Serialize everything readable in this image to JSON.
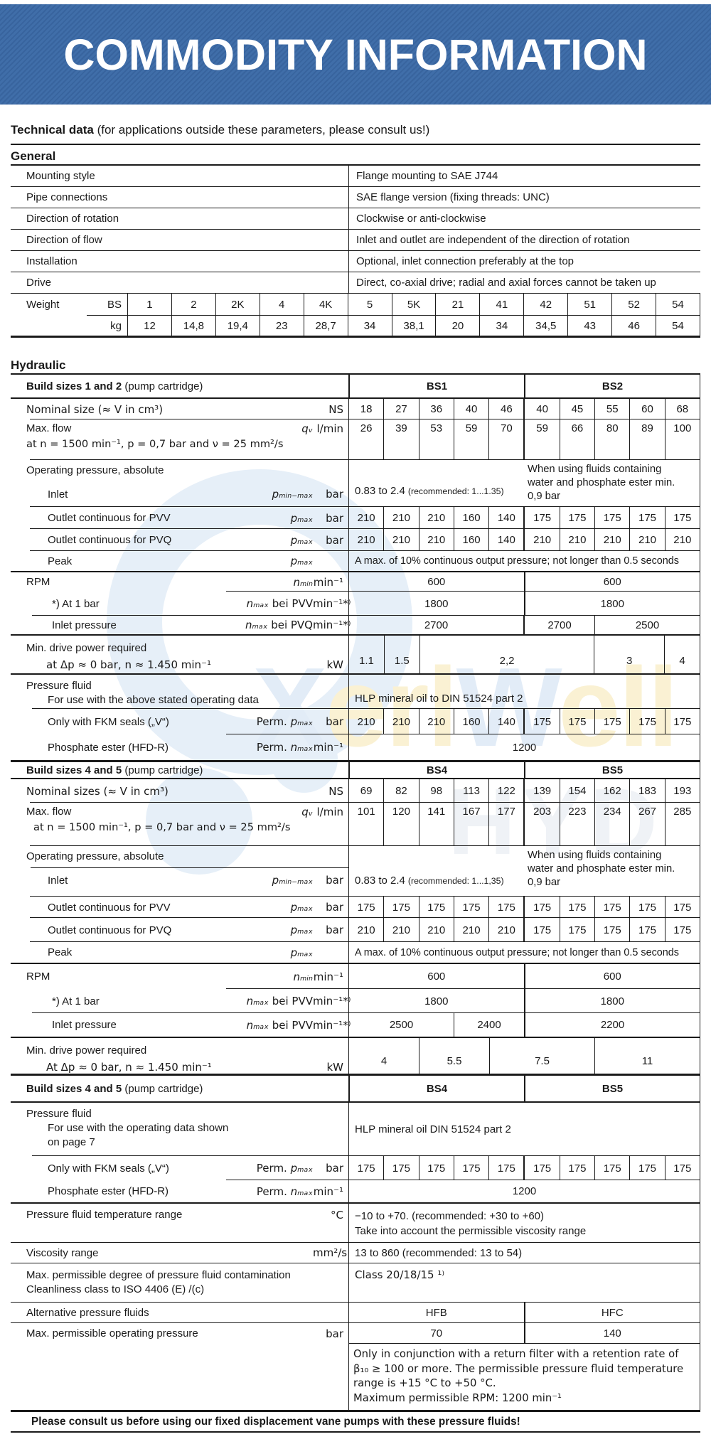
{
  "banner": {
    "title": "COMMODITY INFORMATION"
  },
  "tech_heading": {
    "bold": "Technical data",
    "rest": " (for applications outside these parameters, please consult us!)"
  },
  "general": {
    "heading": "General",
    "rows": [
      {
        "label": "Mounting style",
        "value": "Flange mounting to SAE J744"
      },
      {
        "label": "Pipe connections",
        "value": "SAE flange version (fixing threads: UNC)"
      },
      {
        "label": "Direction of rotation",
        "value": "Clockwise or anti-clockwise"
      },
      {
        "label": "Direction of flow",
        "value": "Inlet and outlet are independent of the direction of rotation"
      },
      {
        "label": "Installation",
        "value": "Optional, inlet connection preferably at the top"
      },
      {
        "label": "Drive",
        "value": "Direct, co-axial drive; radial and axial forces cannot be taken up"
      }
    ],
    "weight": {
      "label": "Weight",
      "row1_unit": "BS",
      "row2_unit": "kg",
      "sizes": [
        "1",
        "2",
        "2K",
        "4",
        "4K",
        "5",
        "5K",
        "21",
        "41",
        "42",
        "51",
        "52",
        "54"
      ],
      "kg": [
        "12",
        "14,8",
        "19,4",
        "23",
        "28,7",
        "34",
        "38,1",
        "20",
        "34",
        "34,5",
        "43",
        "46",
        "54"
      ]
    }
  },
  "hydraulic": {
    "heading": "Hydraulic"
  },
  "s1": {
    "header": {
      "bold": "Build sizes 1 and 2 ",
      "normal": "(pump cartridge)",
      "cells": [
        {
          "t": "BS1",
          "s": 1
        },
        {
          "t": "BS2",
          "s": 1,
          "c": "bsl"
        }
      ]
    },
    "nominal": {
      "label": "Nominal size (≈ V in cm³)",
      "unit": "NS",
      "values": [
        "18",
        "27",
        "36",
        "40",
        "46",
        "40",
        "45",
        "55",
        "60",
        "68"
      ]
    },
    "flow": {
      "label": "Max. flow",
      "sub": "at n = 1500 min⁻¹, p = 0,7 bar and ν = 25 mm²/s",
      "sym": "qᵥ",
      "unit": "l/min",
      "values": [
        "26",
        "39",
        "53",
        "59",
        "70",
        "59",
        "66",
        "80",
        "89",
        "100"
      ]
    },
    "op": {
      "label": "Operating pressure, absolute",
      "inlet_label": "Inlet",
      "sym": "pₘᵢₙ₋ₘₐₓ",
      "unit": "bar",
      "bs1_value": "0.83 to 2.4",
      "bs1_note": "(recommended: 1...1.35)",
      "bs2_value": "When using fluids containing\nwater and phosphate ester min.\n0,9 bar"
    },
    "pvv": {
      "label": "Outlet continuous for PVV",
      "sym": "pₘₐₓ",
      "unit": "bar",
      "values": [
        "210",
        "210",
        "210",
        "160",
        "140",
        "175",
        "175",
        "175",
        "175",
        "175"
      ]
    },
    "pvq": {
      "label": "Outlet continuous for PVQ",
      "sym": "pₘₐₓ",
      "unit": "bar",
      "values": [
        "210",
        "210",
        "210",
        "160",
        "140",
        "210",
        "210",
        "210",
        "210",
        "210"
      ]
    },
    "peak": {
      "label": "Peak",
      "sym": "pₘₐₓ",
      "value": "A max. of 10% continuous output pressure; not longer than 0.5 seconds"
    },
    "rpm": {
      "label": "RPM",
      "sym": "nₘᵢₙ",
      "unit": "min⁻¹",
      "cells": [
        {
          "t": "600",
          "s": 5
        },
        {
          "t": "600",
          "s": 5,
          "c": "bsl"
        }
      ]
    },
    "rpm2": {
      "label": "*) At 1 bar",
      "sym": "nₘₐₓ",
      "sym2": " bei PVV",
      "unit": "min⁻¹*⁾",
      "cells": [
        {
          "t": "1800",
          "s": 5
        },
        {
          "t": "1800",
          "s": 5,
          "c": "bsl"
        }
      ]
    },
    "rpm3": {
      "label": "Inlet pressure",
      "sym": "nₘₐₓ",
      "sym2": " bei PVQ",
      "unit": "min⁻¹*⁾",
      "cells": [
        {
          "t": "2700",
          "s": 5
        },
        {
          "t": "2700",
          "s": 2,
          "c": "bsl"
        },
        {
          "t": "2500",
          "s": 3
        }
      ]
    },
    "power": {
      "label": "Min. drive power required",
      "sub": "at Δp ≈ 0 bar, n ≈ 1.450 min⁻¹",
      "unit": "kW",
      "cells": [
        {
          "t": "1.1",
          "s": 1
        },
        {
          "t": "1.5",
          "s": 1
        },
        {
          "t": "2,2",
          "s": 5
        },
        {
          "t": "3",
          "s": 2
        },
        {
          "t": "4",
          "s": 1
        }
      ]
    },
    "fluid": {
      "label": "Pressure fluid",
      "sub": "For use with the above stated operating data",
      "value": "HLP mineral oil to DIN 51524 part 2"
    },
    "fkm": {
      "label": "Only with FKM seals („V“)",
      "sym_pre": "Perm. ",
      "sym": "pₘₐₓ",
      "unit": "bar",
      "values": [
        "210",
        "210",
        "210",
        "160",
        "140",
        "175",
        "175",
        "175",
        "175",
        "175"
      ]
    },
    "phos": {
      "label": "Phosphate ester  (HFD-R)",
      "sym_pre": "Perm. ",
      "sym": "nₘₐₓ",
      "unit": "min⁻¹",
      "cells": [
        {
          "t": "1200",
          "s": 1
        }
      ]
    }
  },
  "s2": {
    "header": {
      "bold": "Build sizes 4 and 5 ",
      "normal": "(pump cartridge)",
      "cells": [
        {
          "t": "BS4",
          "s": 1
        },
        {
          "t": "BS5",
          "s": 1,
          "c": "bsl"
        }
      ]
    },
    "nominal": {
      "label": "Nominal sizes (≈ V in cm³)",
      "unit": "NS",
      "values": [
        "69",
        "82",
        "98",
        "113",
        "122",
        "139",
        "154",
        "162",
        "183",
        "193"
      ]
    },
    "flow": {
      "label": "Max. flow",
      "sub": "at n = 1500 min⁻¹, p = 0,7 bar and ν = 25 mm²/s",
      "sym": "qᵥ",
      "unit": "l/min",
      "values": [
        "101",
        "120",
        "141",
        "167",
        "177",
        "203",
        "223",
        "234",
        "267",
        "285"
      ]
    },
    "op": {
      "label": "Operating pressure, absolute",
      "inlet_label": "Inlet",
      "sym": "pₘᵢₙ₋ₘₐₓ",
      "unit": "bar",
      "bs1_value": "0.83 to 2.4",
      "bs1_note": "(recommended: 1...1,35)",
      "bs2_value": "When using fluids containing\nwater and phosphate ester min.\n0,9 bar"
    },
    "pvv": {
      "label": "Outlet continuous for PVV",
      "sym": "pₘₐₓ",
      "unit": "bar",
      "values": [
        "175",
        "175",
        "175",
        "175",
        "175",
        "175",
        "175",
        "175",
        "175",
        "175"
      ]
    },
    "pvq": {
      "label": "Outlet continuous for PVQ",
      "sym": "pₘₐₓ",
      "unit": "bar",
      "values": [
        "210",
        "210",
        "210",
        "210",
        "210",
        "175",
        "175",
        "175",
        "175",
        "175"
      ]
    },
    "peak": {
      "label": "Peak",
      "sym": "pₘₐₓ",
      "value": "A max. of 10% continuous output pressure; not longer than 0.5 seconds"
    },
    "rpm": {
      "label": "RPM",
      "sym": "nₘᵢₙ",
      "unit": "min⁻¹",
      "cells": [
        {
          "t": "600",
          "s": 5
        },
        {
          "t": "600",
          "s": 5,
          "c": "bsl"
        }
      ]
    },
    "rpm2": {
      "label": "*) At 1 bar",
      "sym": "nₘₐₓ",
      "sym2": " bei PVV",
      "unit": "min⁻¹*⁾",
      "cells": [
        {
          "t": "1800",
          "s": 5
        },
        {
          "t": "1800",
          "s": 5,
          "c": "bsl"
        }
      ]
    },
    "rpm3": {
      "label": "Inlet pressure",
      "sym": "nₘₐₓ",
      "sym2": " bei PVV",
      "unit": "min⁻¹*⁾",
      "cells": [
        {
          "t": "2500",
          "s": 3
        },
        {
          "t": "2400",
          "s": 2
        },
        {
          "t": "2200",
          "s": 5,
          "c": "bsl"
        }
      ]
    },
    "power": {
      "label": "Min. drive power required",
      "sub": "At Δp ≈ 0 bar, n ≈ 1.450 min⁻¹",
      "unit": "kW",
      "cells": [
        {
          "t": "4",
          "s": 2
        },
        {
          "t": "5.5",
          "s": 2
        },
        {
          "t": "7.5",
          "s": 3
        },
        {
          "t": "11",
          "s": 3
        }
      ]
    }
  },
  "s3": {
    "header": {
      "bold": "Build sizes 4 and 5 ",
      "normal": "(pump cartridge)",
      "cells": [
        {
          "t": "BS4",
          "s": 1
        },
        {
          "t": "BS5",
          "s": 1,
          "c": "bsl"
        }
      ]
    },
    "fluid": {
      "l1": "Pressure fluid",
      "l2": "For use with the operating data shown",
      "l3": "on page 7",
      "value": "HLP mineral oil DIN 51524 part 2"
    },
    "fkm": {
      "label": "Only with FKM seals („V“)",
      "sym_pre": "Perm. ",
      "sym": "pₘₐₓ",
      "unit": "bar",
      "values": [
        "175",
        "175",
        "175",
        "175",
        "175",
        "175",
        "175",
        "175",
        "175",
        "175"
      ]
    },
    "phos": {
      "label": "Phosphate ester (HFD-R)",
      "sym_pre": "Perm. ",
      "sym": "nₘₐₓ",
      "unit": "min⁻¹",
      "cells": [
        {
          "t": "1200",
          "s": 1
        }
      ]
    },
    "temp": {
      "label": "Pressure fluid temperature range",
      "unit": "°C",
      "value": "−10 to +70. (recommended: +30 to +60)\nTake into account the permissible viscosity range"
    },
    "visc": {
      "label": "Viscosity range",
      "unit": "mm²/s",
      "value": "13 to 860 (recommended: 13 to 54)"
    },
    "contam": {
      "l1": "Max. permissible degree of pressure fluid contamination",
      "l2": "Cleanliness class to ISO 4406 (E) /(c)",
      "value": "Class 20/18/15 ¹⁾"
    },
    "alt": {
      "label": "Alternative pressure fluids",
      "cells": [
        {
          "t": "HFB",
          "s": 1
        },
        {
          "t": "HFC",
          "s": 1,
          "c": "bsl"
        }
      ]
    },
    "maxop": {
      "label": "Max. permissible operating pressure",
      "unit": "bar",
      "cells": [
        {
          "t": "70",
          "s": 1
        },
        {
          "t": "140",
          "s": 1,
          "c": "bsl"
        }
      ]
    },
    "note": "Only in conjunction with a return filter with a retention rate of\nβ₁₀ ≥ 100 or more. The permissible pressure fluid temperature\nrange is +15 °C to +50 °C.\nMaximum permissible RPM: 1200 min⁻¹"
  },
  "footer": {
    "text": "Please consult us before using our fixed displacement vane pumps with these pressure fluids!"
  },
  "watermark": {
    "part1": "X",
    "part2": "erl",
    "part3": "W",
    "part4": "ell",
    "sub": "HYD"
  },
  "colors": {
    "banner_blue": "#3c6ba5",
    "line": "#1a1a1a",
    "watermark_blue": "#e6eff8",
    "watermark_yellow": "#faf1d3"
  }
}
